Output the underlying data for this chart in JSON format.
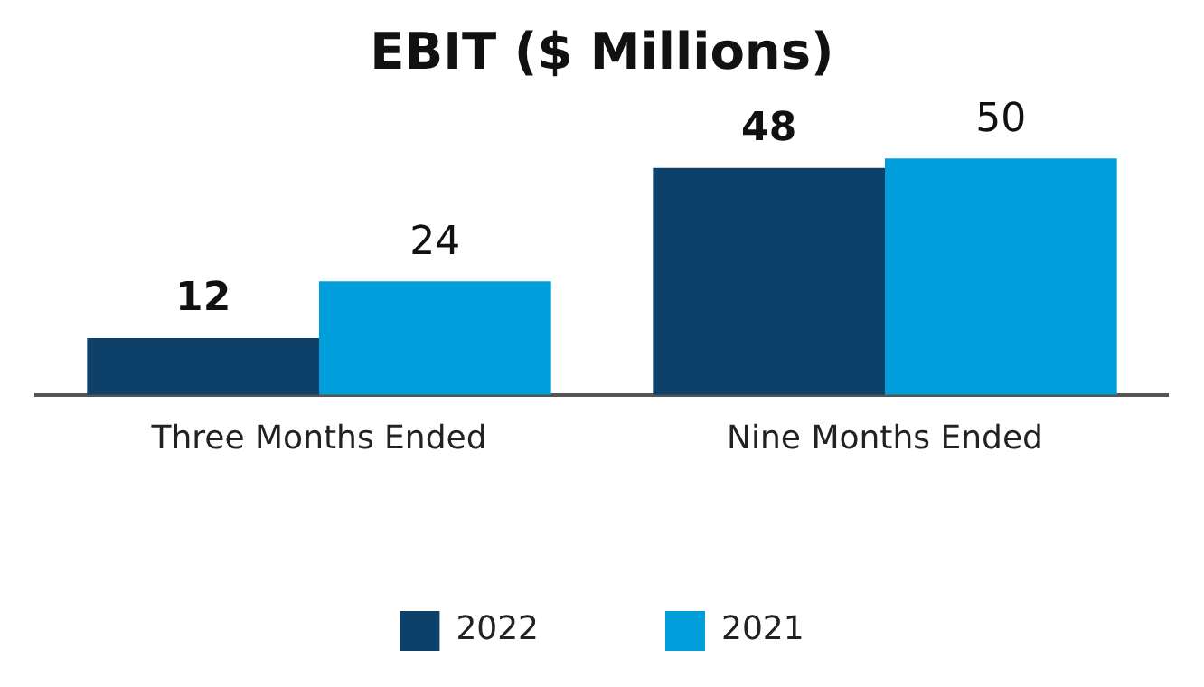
{
  "chart_data": {
    "type": "bar",
    "title": "EBIT ($ Millions)",
    "categories": [
      "Three Months Ended",
      "Nine Months Ended"
    ],
    "series": [
      {
        "name": "2022",
        "color": "#0d4169",
        "values": [
          12,
          48
        ]
      },
      {
        "name": "2021",
        "color": "#009fdb",
        "values": [
          24,
          50
        ]
      }
    ],
    "relative": false,
    "data_labels": true,
    "legend": "bottom",
    "grid": false
  }
}
